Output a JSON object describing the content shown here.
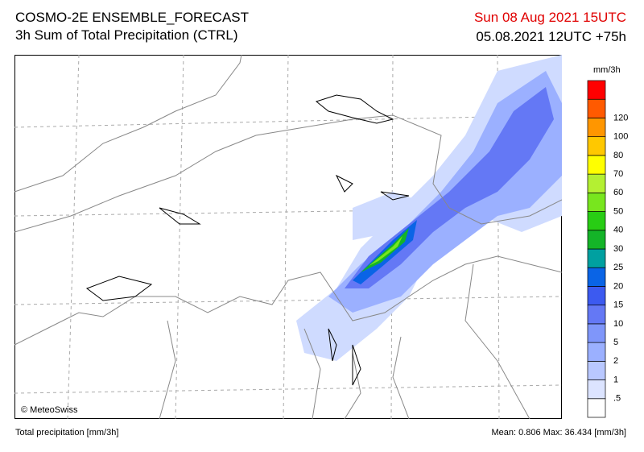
{
  "header": {
    "title": "COSMO-2E ENSEMBLE_FORECAST",
    "subtitle": "3h Sum of Total Precipitation (CTRL)",
    "valid_time": "Sun 08 Aug 2021 15UTC",
    "run_time": "05.08.2021 12UTC +75h"
  },
  "map": {
    "credit": "© MeteoSwiss"
  },
  "colorbar": {
    "unit": "mm/3h",
    "labels": [
      ".5",
      "1",
      "2",
      "5",
      "10",
      "15",
      "20",
      "25",
      "30",
      "40",
      "50",
      "60",
      "70",
      "80",
      "100",
      "120"
    ],
    "colors": [
      "#ffffff",
      "#dce4ff",
      "#b9c8ff",
      "#9bb0ff",
      "#7f96fa",
      "#6478f5",
      "#3c5af0",
      "#0a64e6",
      "#00a0a0",
      "#14b428",
      "#28cd14",
      "#78e61e",
      "#b4f032",
      "#ffff00",
      "#ffc800",
      "#ff9600",
      "#ff5a00",
      "#ff0000"
    ]
  },
  "footer": {
    "left": "Total precipitation [mm/3h]",
    "right": "Mean:  0.806 Max: 36.434 [mm/3h]"
  }
}
